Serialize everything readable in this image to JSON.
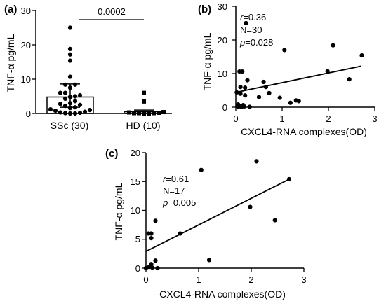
{
  "chart_data": [
    {
      "panel": "(a)",
      "type": "scatter",
      "title": "",
      "xlabel": "",
      "ylabel": "TNF-α pg/mL",
      "ylim": [
        0,
        30
      ],
      "yticks": [
        "0",
        "10",
        "20",
        "30"
      ],
      "categories": [
        "SSc (30)",
        "HD (10)"
      ],
      "bar_means": [
        4.8,
        0.5
      ],
      "error_bars": [
        [
          1.8,
          8.6
        ],
        [
          0.0,
          1.0
        ]
      ],
      "significance": "0.0002",
      "series": [
        {
          "category": "SSc (30)",
          "values": [
            25,
            18.8,
            17.2,
            15.4,
            10.7,
            8.4,
            8.4,
            7.5,
            6.0,
            6.0,
            5.3,
            5.0,
            4.8,
            4.3,
            3.6,
            3.0,
            2.8,
            2.5,
            2.2,
            1.8,
            1.6,
            1.2,
            1.0,
            0.8,
            0.5,
            0.3,
            0.2,
            0.1,
            0.0,
            0.0
          ],
          "marker": "circle"
        },
        {
          "category": "HD (10)",
          "values": [
            6.0,
            3.5,
            0.4,
            0.3,
            0.2,
            0.1,
            0.1,
            0.1,
            0.0,
            0.0
          ],
          "marker": "square"
        }
      ],
      "grid": false
    },
    {
      "panel": "(b)",
      "type": "scatter",
      "title": "",
      "xlabel": "CXCL4-RNA complexes(OD)",
      "ylabel": "TNF-α pg/mL",
      "xlim": [
        0,
        3
      ],
      "ylim": [
        0,
        30
      ],
      "xticks": [
        "0",
        "1",
        "2",
        "3"
      ],
      "yticks": [
        "0",
        "10",
        "20",
        "30"
      ],
      "annotation": {
        "r_label": "r",
        "r_value": "=0.36",
        "n": "N=30",
        "p_label": "p",
        "p_value": "=0.028"
      },
      "points": [
        [
          0.22,
          25.0
        ],
        [
          2.1,
          18.4
        ],
        [
          2.72,
          15.4
        ],
        [
          1.05,
          17.0
        ],
        [
          1.98,
          10.7
        ],
        [
          2.45,
          8.3
        ],
        [
          0.08,
          10.6
        ],
        [
          0.14,
          10.6
        ],
        [
          0.25,
          8.0
        ],
        [
          0.6,
          7.5
        ],
        [
          0.65,
          6.0
        ],
        [
          0.1,
          6.0
        ],
        [
          0.2,
          5.8
        ],
        [
          0.72,
          4.2
        ],
        [
          0.1,
          4.0
        ],
        [
          0.02,
          4.4
        ],
        [
          0.2,
          3.5
        ],
        [
          0.5,
          3.0
        ],
        [
          0.95,
          2.8
        ],
        [
          1.3,
          2.0
        ],
        [
          1.36,
          1.8
        ],
        [
          1.18,
          1.3
        ],
        [
          0.05,
          0.8
        ],
        [
          0.12,
          0.4
        ],
        [
          0.05,
          0.1
        ],
        [
          0.12,
          0.1
        ],
        [
          0.18,
          0.2
        ],
        [
          0.08,
          0.3
        ],
        [
          0.3,
          0.1
        ],
        [
          0.16,
          0.6
        ]
      ],
      "fit_line": [
        [
          0.0,
          4.4
        ],
        [
          2.7,
          12.2
        ]
      ],
      "grid": false
    },
    {
      "panel": "(c)",
      "type": "scatter",
      "title": "",
      "xlabel": "CXCL4-RNA complexes(OD)",
      "ylabel": "TNF-α pg/mL",
      "xlim": [
        0,
        3
      ],
      "ylim": [
        0,
        20
      ],
      "xticks": [
        "0",
        "1",
        "2",
        "3"
      ],
      "yticks": [
        "0",
        "5",
        "10",
        "15",
        "20"
      ],
      "annotation": {
        "r_label": "r",
        "r_value": "=0.61",
        "n": "N=17",
        "p_label": "p",
        "p_value": "=0.005"
      },
      "points": [
        [
          1.05,
          17.0
        ],
        [
          2.1,
          18.5
        ],
        [
          2.72,
          15.4
        ],
        [
          1.98,
          10.6
        ],
        [
          2.45,
          8.3
        ],
        [
          0.18,
          8.2
        ],
        [
          0.65,
          6.0
        ],
        [
          0.05,
          6.0
        ],
        [
          0.1,
          6.0
        ],
        [
          0.1,
          5.2
        ],
        [
          1.2,
          1.4
        ],
        [
          0.18,
          1.3
        ],
        [
          0.1,
          0.7
        ],
        [
          0.06,
          0.2
        ],
        [
          0.12,
          0.1
        ],
        [
          0.22,
          0.0
        ],
        [
          0.0,
          0.0
        ]
      ],
      "fit_line": [
        [
          0.0,
          2.9
        ],
        [
          2.7,
          15.3
        ]
      ],
      "grid": false
    }
  ]
}
